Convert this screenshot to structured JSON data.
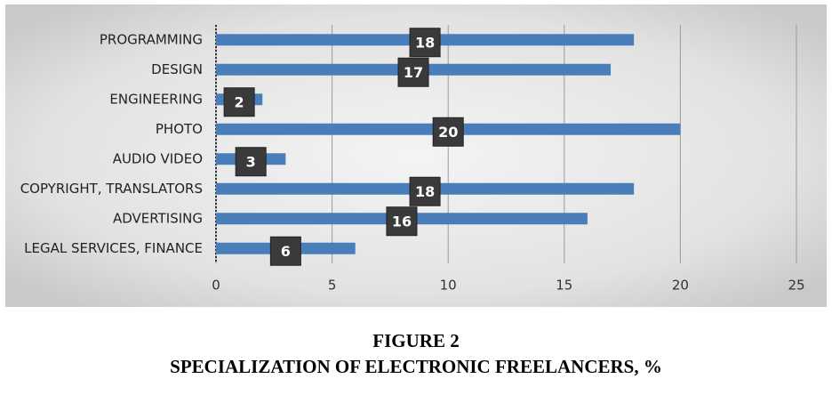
{
  "chart_data": {
    "type": "bar",
    "orientation": "horizontal",
    "figure_label": "FIGURE 2",
    "title": "SPECIALIZATION OF ELECTRONIC FREELANCERS, %",
    "categories": [
      "PROGRAMMING",
      "DESIGN",
      "ENGINEERING",
      "PHOTO",
      "AUDIO VIDEO",
      "COPYRIGHT, TRANSLATORS",
      "ADVERTISING",
      "LEGAL SERVICES, FINANCE"
    ],
    "values": [
      18,
      17,
      2,
      20,
      3,
      18,
      16,
      6
    ],
    "color": "#4a7ebb",
    "xlim": [
      0,
      25
    ],
    "xticks": [
      0,
      5,
      10,
      15,
      20,
      25
    ],
    "grid": true
  }
}
